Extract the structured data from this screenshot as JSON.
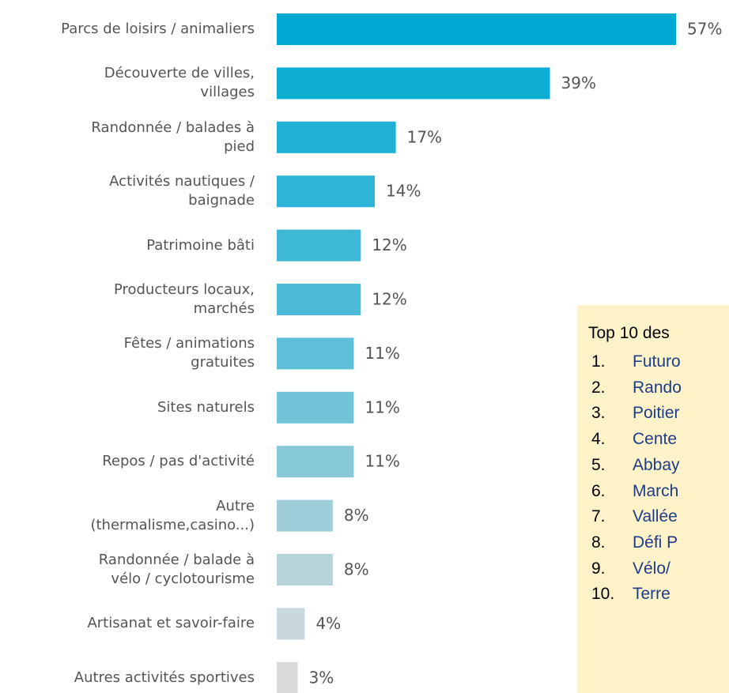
{
  "chart_data": {
    "type": "bar",
    "orientation": "horizontal",
    "categories": [
      "Parcs de loisirs / animaliers",
      "Découverte de villes,\nvillages",
      "Randonnée / balades à\npied",
      "Activités nautiques /\nbaignade",
      "Patrimoine bâti",
      "Producteurs locaux,\nmarchés",
      "Fêtes / animations\ngratuites",
      "Sites naturels",
      "Repos / pas d'activité",
      "Autre\n(thermalisme,casino...)",
      "Randonnée / balade à\nvélo / cyclotourisme",
      "Artisanat et savoir-faire",
      "Autres activités sportives"
    ],
    "values": [
      57,
      39,
      17,
      14,
      12,
      12,
      11,
      11,
      11,
      8,
      8,
      4,
      3
    ],
    "value_labels": [
      "57%",
      "39%",
      "17%",
      "14%",
      "12%",
      "12%",
      "11%",
      "11%",
      "11%",
      "8%",
      "8%",
      "4%",
      "3%"
    ],
    "colors": [
      "#00a9d2",
      "#0dadd4",
      "#1eb1d5",
      "#2db4d6",
      "#3db8d7",
      "#4cbbd7",
      "#5dbfd8",
      "#72c4d8",
      "#88c9d8",
      "#a0ced8",
      "#b6d3da",
      "#c9d8dc",
      "#d9d9d9"
    ]
  },
  "box": {
    "title": "Top 10 des",
    "items": [
      {
        "n": "1.",
        "text": "Futuro"
      },
      {
        "n": "2.",
        "text": "Rando"
      },
      {
        "n": "3.",
        "text": "Poitier"
      },
      {
        "n": "4.",
        "text": "Cente"
      },
      {
        "n": "5.",
        "text": "Abbay"
      },
      {
        "n": "6.",
        "text": "March"
      },
      {
        "n": "7.",
        "text": "Vallée"
      },
      {
        "n": "8.",
        "text": "Défi P"
      },
      {
        "n": "9.",
        "text": "Vélo/ "
      },
      {
        "n": "10.",
        "text": "Terre"
      }
    ]
  }
}
